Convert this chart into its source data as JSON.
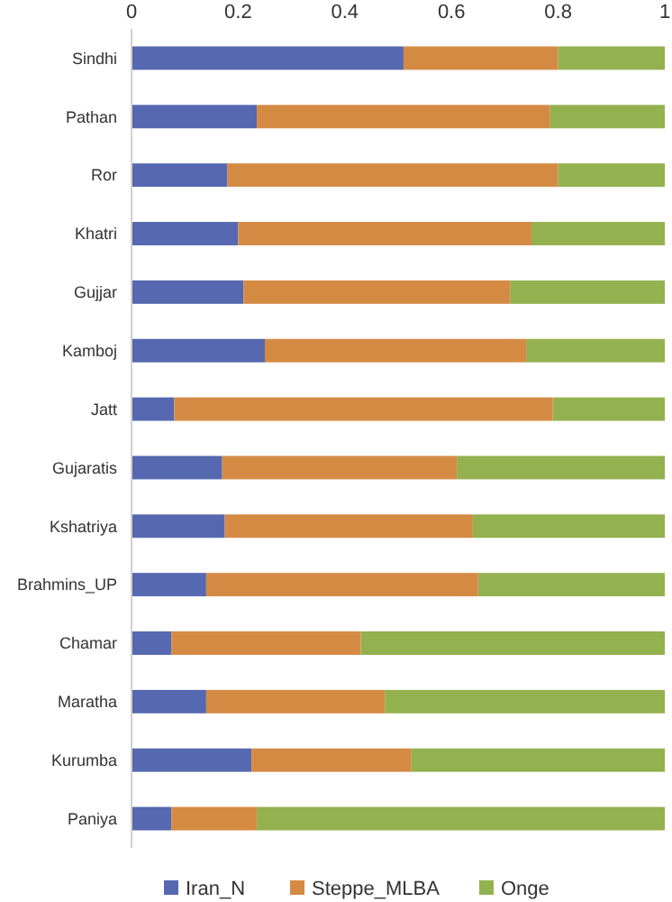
{
  "chart_data": {
    "type": "bar",
    "orientation": "horizontal",
    "stacked": true,
    "categories": [
      "Sindhi",
      "Pathan",
      "Ror",
      "Khatri",
      "Gujjar",
      "Kamboj",
      "Jatt",
      "Gujaratis",
      "Kshatriya",
      "Brahmins_UP",
      "Chamar",
      "Maratha",
      "Kurumba",
      "Paniya"
    ],
    "series": [
      {
        "name": "Iran_N",
        "color": "#5568b0",
        "values": [
          0.51,
          0.235,
          0.18,
          0.2,
          0.21,
          0.25,
          0.08,
          0.17,
          0.175,
          0.14,
          0.075,
          0.14,
          0.225,
          0.075
        ]
      },
      {
        "name": "Steppe_MLBA",
        "color": "#d58a43",
        "values": [
          0.29,
          0.55,
          0.62,
          0.55,
          0.5,
          0.49,
          0.71,
          0.44,
          0.465,
          0.51,
          0.355,
          0.335,
          0.3,
          0.16
        ]
      },
      {
        "name": "Onge",
        "color": "#93b14f",
        "values": [
          0.2,
          0.215,
          0.2,
          0.25,
          0.29,
          0.26,
          0.21,
          0.39,
          0.36,
          0.35,
          0.57,
          0.525,
          0.475,
          0.765
        ]
      }
    ],
    "xlim": [
      0,
      1
    ],
    "xticks": [
      0,
      0.2,
      0.4,
      0.6,
      0.8,
      1
    ],
    "grid": false,
    "legend": "bottom"
  }
}
